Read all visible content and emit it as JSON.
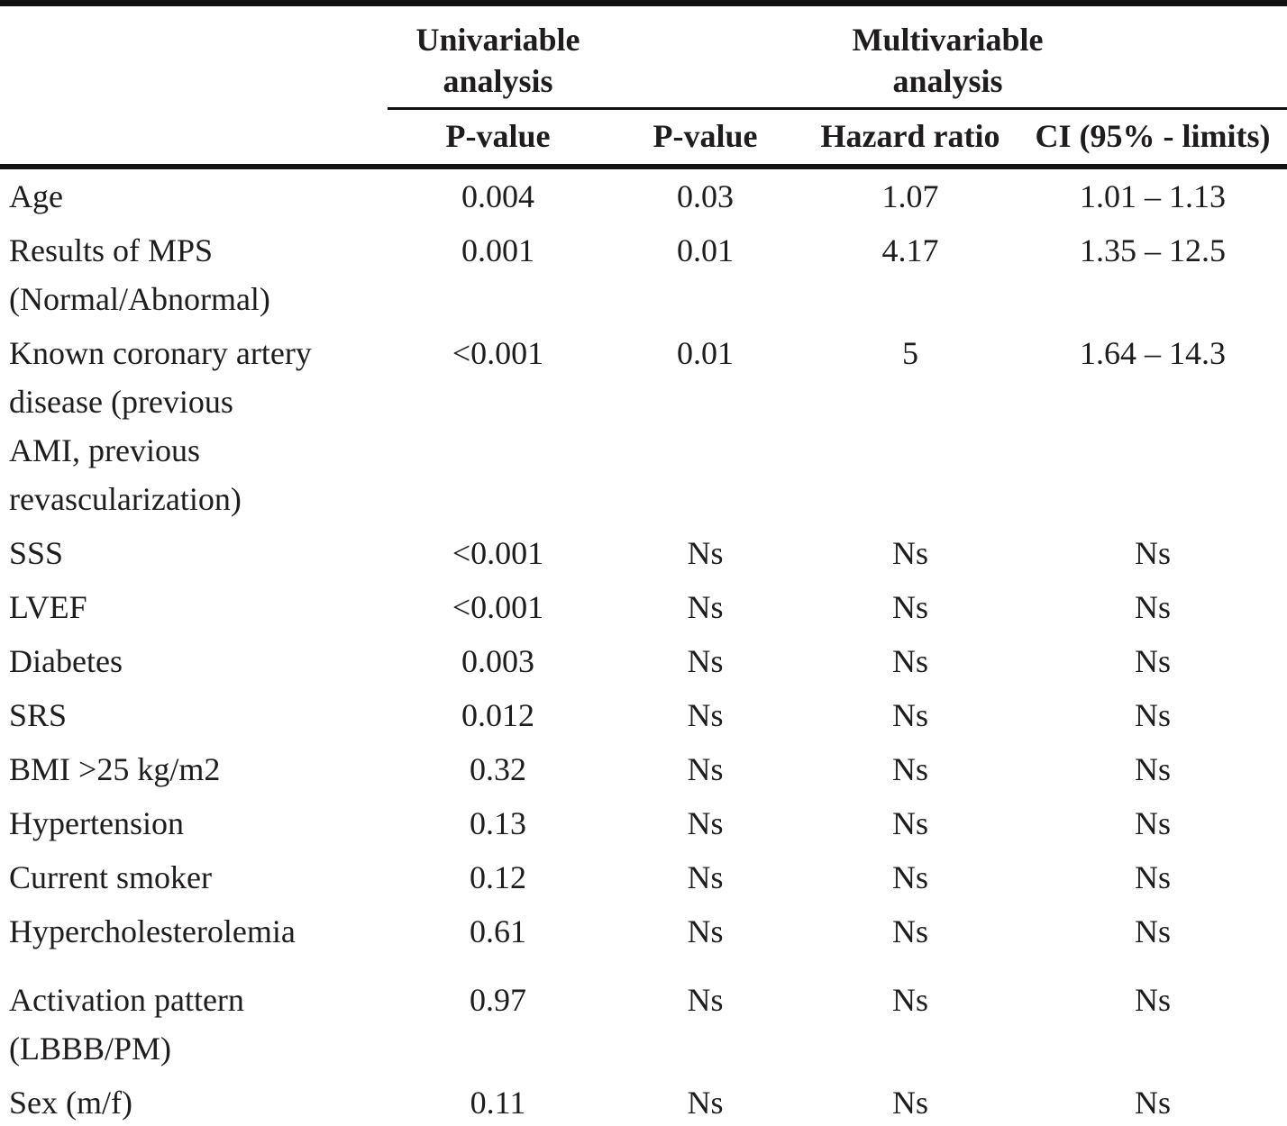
{
  "table": {
    "header": {
      "corner": "",
      "group_univariable": [
        "Univariable",
        "analysis"
      ],
      "group_multivariable": [
        "Multivariable",
        "analysis"
      ],
      "col_univariable_p": "P-value",
      "col_multivariable_p": "P-value",
      "col_hazard_ratio": "Hazard ratio",
      "col_ci": "CI (95% - limits)"
    },
    "rows": [
      {
        "label": [
          "Age"
        ],
        "uni_p": "0.004",
        "multi_p": "0.03",
        "hr": "1.07",
        "ci": "1.01 – 1.13"
      },
      {
        "label": [
          "Results of MPS",
          "(Normal/Abnormal)"
        ],
        "uni_p": "0.001",
        "multi_p": "0.01",
        "hr": "4.17",
        "ci": "1.35 – 12.5"
      },
      {
        "label": [
          "Known coronary artery",
          "disease (previous",
          "AMI, previous",
          "revascularization)"
        ],
        "uni_p": "<0.001",
        "multi_p": "0.01",
        "hr": "5",
        "ci": "1.64 – 14.3"
      },
      {
        "label": [
          "SSS"
        ],
        "uni_p": "<0.001",
        "multi_p": "Ns",
        "hr": "Ns",
        "ci": "Ns"
      },
      {
        "label": [
          "LVEF"
        ],
        "uni_p": "<0.001",
        "multi_p": "Ns",
        "hr": "Ns",
        "ci": "Ns"
      },
      {
        "label": [
          "Diabetes"
        ],
        "uni_p": "0.003",
        "multi_p": "Ns",
        "hr": "Ns",
        "ci": "Ns"
      },
      {
        "label": [
          "SRS"
        ],
        "uni_p": "0.012",
        "multi_p": "Ns",
        "hr": "Ns",
        "ci": "Ns"
      },
      {
        "label": [
          "BMI >25 kg/m2"
        ],
        "uni_p": "0.32",
        "multi_p": "Ns",
        "hr": "Ns",
        "ci": "Ns"
      },
      {
        "label": [
          "Hypertension"
        ],
        "uni_p": "0.13",
        "multi_p": "Ns",
        "hr": "Ns",
        "ci": "Ns"
      },
      {
        "label": [
          "Current smoker"
        ],
        "uni_p": "0.12",
        "multi_p": "Ns",
        "hr": "Ns",
        "ci": "Ns"
      },
      {
        "label": [
          "Hypercholesterolemia"
        ],
        "uni_p": "0.61",
        "multi_p": "Ns",
        "hr": "Ns",
        "ci": "Ns"
      },
      {
        "label": [
          "Activation pattern",
          "(LBBB/PM)"
        ],
        "uni_p": "0.97",
        "multi_p": "Ns",
        "hr": "Ns",
        "ci": "Ns"
      },
      {
        "label": [
          "Sex (m/f)"
        ],
        "uni_p": "0.11",
        "multi_p": "Ns",
        "hr": "Ns",
        "ci": "Ns"
      }
    ]
  }
}
